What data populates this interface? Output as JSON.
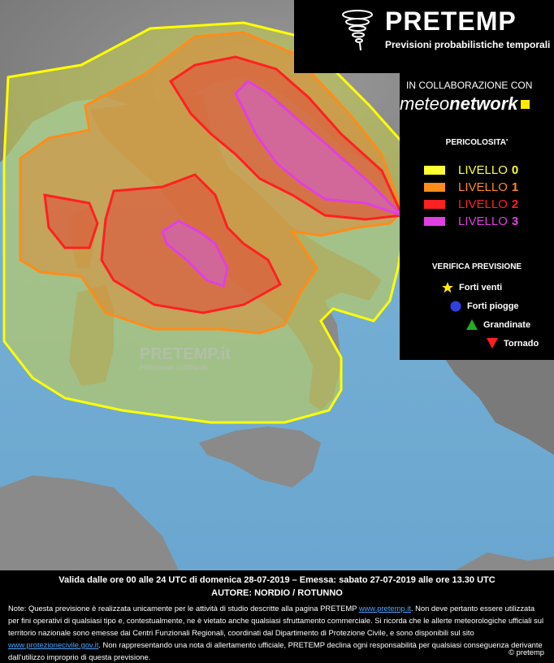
{
  "header": {
    "title": "PRETEMP",
    "subtitle": "Previsioni probabilistiche temporali"
  },
  "collaboration": {
    "label": "IN COLLABORAZIONE CON",
    "partner_regular": "meteo",
    "partner_bold": "network"
  },
  "legend": {
    "title": "PERICOLOSITA'",
    "levels": [
      {
        "label": "LIVELLO",
        "num": "0",
        "color": "#ffff33"
      },
      {
        "label": "LIVELLO",
        "num": "1",
        "color": "#ff8c1a"
      },
      {
        "label": "LIVELLO",
        "num": "2",
        "color": "#ff2020"
      },
      {
        "label": "LIVELLO",
        "num": "3",
        "color": "#e040e0"
      }
    ]
  },
  "verification": {
    "title": "VERIFICA PREVISIONE",
    "items": [
      {
        "label": "Forti venti",
        "icon": "star-icon",
        "color": "#ffea00"
      },
      {
        "label": "Forti piogge",
        "icon": "circle-icon",
        "color": "#3040e0"
      },
      {
        "label": "Grandinate",
        "icon": "triangle-up-icon",
        "color": "#22aa22"
      },
      {
        "label": "Tornado",
        "icon": "triangle-down-icon",
        "color": "#ff2020"
      }
    ]
  },
  "watermark": {
    "title": "PRETEMP.it",
    "subtitle": "PREvisioni TEMPorali"
  },
  "footer": {
    "validity": "Valida dalle ore 00 alle 24 UTC di domenica 28-07-2019 – Emessa: sabato 27-07-2019 alle ore 13.30 UTC",
    "author": "AUTORE: NORDIO / ROTUNNO",
    "note_part1": "Note: Questa previsione è realizzata unicamente per le attività di studio descritte alla pagina PRETEMP ",
    "note_link1": "www.pretemp.it",
    "note_part2": ". Non deve pertanto essere utilizzata per fini operativi di qualsiasi tipo e, contestualmente, ne è vietato anche qualsiasi sfruttamento commerciale. Si ricorda che le allerte meteorologiche ufficiali sul territorio nazionale sono emesse dai Centri Funzionali Regionali, coordinati dal Dipartimento di Protezione Civile, e sono disponibili sul sito ",
    "note_link2": "www.protezionecivile.gov.it",
    "note_part3": ". Non rappresentando una nota di allertamento ufficiale, PRETEMP declina ogni responsabilità per qualsiasi conseguenza derivante dall'utilizzo improprio di questa previsione.",
    "copyright": "© pretemp"
  }
}
